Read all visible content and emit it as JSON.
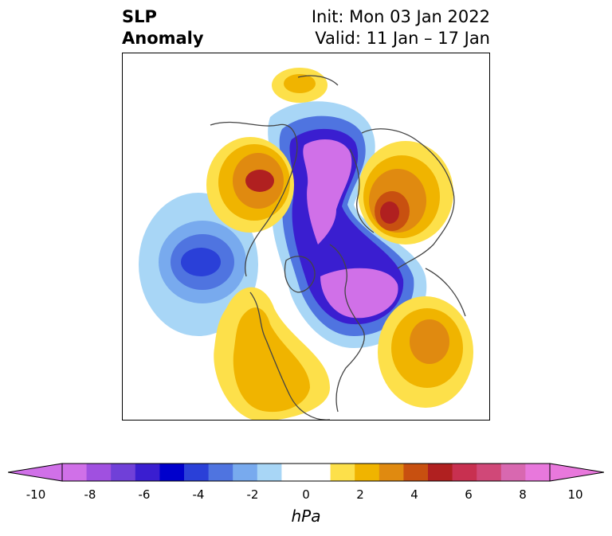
{
  "title": {
    "left_line1": "SLP",
    "left_line2": "Anomaly",
    "right_line1": "Init: Mon 03 Jan 2022",
    "right_line2": "Valid: 11 Jan – 17 Jan"
  },
  "colorbar": {
    "unit": "hPa",
    "tick_labels": [
      "-10",
      "-8",
      "-6",
      "-4",
      "-2",
      "0",
      "2",
      "4",
      "6",
      "8",
      "10"
    ],
    "colors": [
      "#d070e8",
      "#a050e0",
      "#7040d8",
      "#3a1ed0",
      "#0000cc",
      "#2a40d8",
      "#4f74e0",
      "#78aaee",
      "#a8d6f6",
      "#ffffff",
      "#ffffff",
      "#fde04a",
      "#f0b400",
      "#e08a10",
      "#c85010",
      "#b02020",
      "#c83050",
      "#d04878",
      "#d868b0",
      "#e878dc"
    ]
  },
  "map": {
    "region": "Northern Hemisphere",
    "field": "SLP Anomaly"
  }
}
